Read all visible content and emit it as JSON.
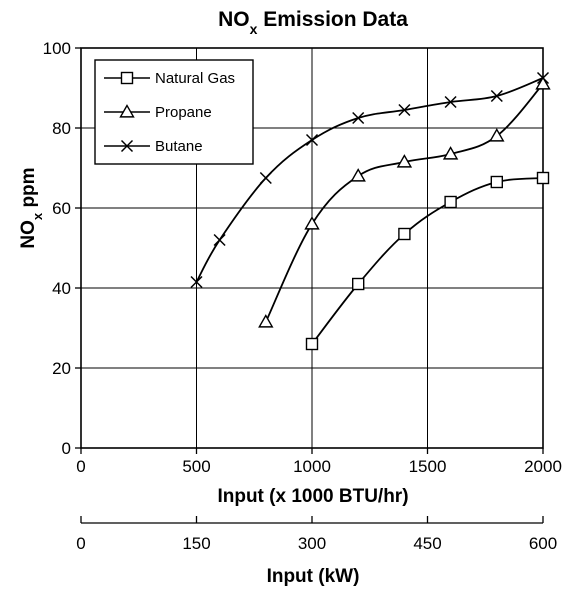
{
  "chart_data": {
    "type": "line",
    "title": "NOx Emission Data",
    "title_main": "NO",
    "title_sub": "x",
    "title_rest": " Emission Data",
    "ylabel": "NOx ppm",
    "ylabel_main": "NO",
    "ylabel_sub": "x",
    "ylabel_rest": " ppm",
    "xlabel": "Input (x 1000 BTU/hr)",
    "xlim": [
      0,
      2000
    ],
    "ylim": [
      0,
      100
    ],
    "xticks": [
      0,
      500,
      1000,
      1500,
      2000
    ],
    "yticks": [
      0,
      20,
      40,
      60,
      80,
      100
    ],
    "secondary_axis": {
      "label": "Input (kW)",
      "ticks": [
        0,
        150,
        300,
        450,
        600
      ],
      "range": [
        0,
        600
      ]
    },
    "grid": true,
    "legend_position": "top-left",
    "series": [
      {
        "name": "Natural Gas",
        "marker": "square",
        "x": [
          1000,
          1200,
          1400,
          1600,
          1800,
          2000
        ],
        "y": [
          26,
          41,
          53.5,
          61.5,
          66.5,
          67.5
        ]
      },
      {
        "name": "Propane",
        "marker": "triangle",
        "x": [
          800,
          1000,
          1200,
          1400,
          1600,
          1800,
          2000
        ],
        "y": [
          31.5,
          56,
          68,
          71.5,
          73.5,
          78,
          91
        ]
      },
      {
        "name": "Butane",
        "marker": "x",
        "x": [
          500,
          600,
          800,
          1000,
          1200,
          1400,
          1600,
          1800,
          2000
        ],
        "y": [
          41.5,
          52,
          67.5,
          77,
          82.5,
          84.5,
          86.5,
          88,
          92.5
        ]
      }
    ]
  }
}
